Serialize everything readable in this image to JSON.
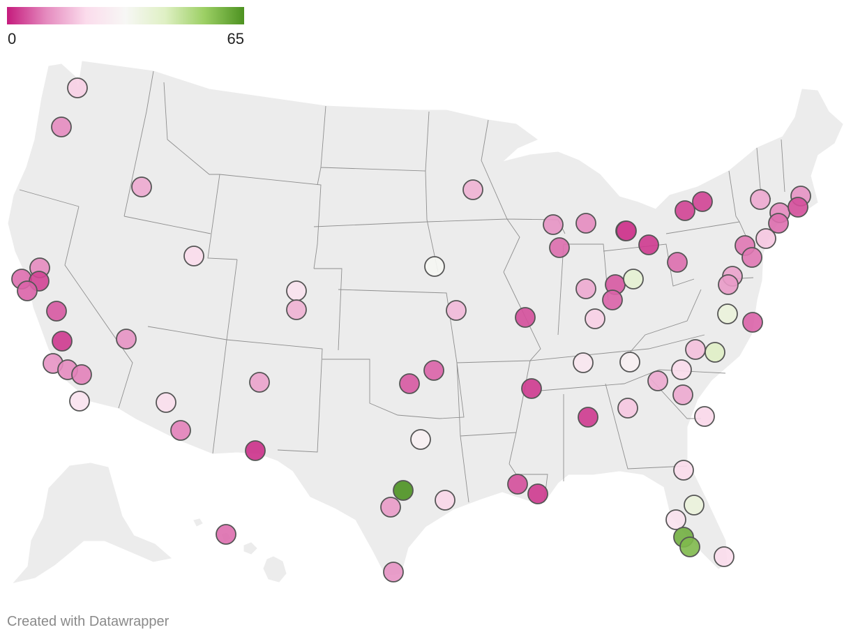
{
  "legend": {
    "min_label": "0",
    "max_label": "65",
    "min_value": 0,
    "max_value": 65,
    "colors": [
      "#c51b7d",
      "#e58bbf",
      "#fbdcec",
      "#f7f7f5",
      "#dff0c4",
      "#9ccf64",
      "#4d9221"
    ]
  },
  "credit": "Created with Datawrapper",
  "map_data": {
    "type": "symbol-map",
    "region": "United States",
    "symbols": [
      {
        "location": "Seattle, WA",
        "value": 20
      },
      {
        "location": "Portland, OR",
        "value": 11
      },
      {
        "location": "Boise, ID",
        "value": 15
      },
      {
        "location": "Sacramento, CA",
        "value": 11
      },
      {
        "location": "Santa Rosa, CA",
        "value": 8
      },
      {
        "location": "Oakland, CA",
        "value": 4
      },
      {
        "location": "San Jose, CA",
        "value": 7
      },
      {
        "location": "Fresno, CA",
        "value": 6
      },
      {
        "location": "Bakersfield, CA",
        "value": 3
      },
      {
        "location": "Los Angeles, CA",
        "value": 12
      },
      {
        "location": "Riverside, CA",
        "value": 11
      },
      {
        "location": "San Bernardino, CA",
        "value": 10
      },
      {
        "location": "San Diego, CA",
        "value": 24
      },
      {
        "location": "Las Vegas, NV",
        "value": 12
      },
      {
        "location": "Salt Lake City, UT",
        "value": 22
      },
      {
        "location": "Phoenix, AZ",
        "value": 23
      },
      {
        "location": "Tucson, AZ",
        "value": 10
      },
      {
        "location": "Albuquerque, NM",
        "value": 14
      },
      {
        "location": "El Paso, TX",
        "value": 2
      },
      {
        "location": "Denver, CO",
        "value": 24
      },
      {
        "location": "Colorado Springs, CO",
        "value": 16
      },
      {
        "location": "Omaha, NE",
        "value": 33
      },
      {
        "location": "Kansas City, MO",
        "value": 17
      },
      {
        "location": "Tulsa, OK",
        "value": 7
      },
      {
        "location": "Oklahoma City, OK",
        "value": 6
      },
      {
        "location": "Dallas, TX",
        "value": 30
      },
      {
        "location": "Austin, TX",
        "value": 65
      },
      {
        "location": "San Antonio, TX",
        "value": 13
      },
      {
        "location": "Houston, TX",
        "value": 21
      },
      {
        "location": "McAllen, TX",
        "value": 12
      },
      {
        "location": "Honolulu, HI",
        "value": 8
      },
      {
        "location": "Minneapolis, MN",
        "value": 16
      },
      {
        "location": "Madison, WI",
        "value": 12
      },
      {
        "location": "Chicago, IL",
        "value": 8
      },
      {
        "location": "Grand Rapids, MI",
        "value": 11
      },
      {
        "location": "Detroit, MI",
        "value": 7
      },
      {
        "location": "Toledo, OH",
        "value": 3
      },
      {
        "location": "Indianapolis, IN",
        "value": 15
      },
      {
        "location": "Dayton, OH",
        "value": 6
      },
      {
        "location": "Columbus, OH",
        "value": 40
      },
      {
        "location": "Cincinnati, OH",
        "value": 7
      },
      {
        "location": "Louisville, KY",
        "value": 20
      },
      {
        "location": "St. Louis, MO",
        "value": 5
      },
      {
        "location": "Memphis, TN",
        "value": 3
      },
      {
        "location": "Nashville, TN",
        "value": 26
      },
      {
        "location": "Knoxville, TN",
        "value": 30
      },
      {
        "location": "Birmingham, AL",
        "value": 3
      },
      {
        "location": "Atlanta, GA",
        "value": 19
      },
      {
        "location": "Baton Rouge, LA",
        "value": 5
      },
      {
        "location": "New Orleans, LA",
        "value": 3
      },
      {
        "location": "Buffalo, NY",
        "value": 4
      },
      {
        "location": "Rochester, NY",
        "value": 4
      },
      {
        "location": "Cleveland, OH",
        "value": 3
      },
      {
        "location": "Pittsburgh, PA",
        "value": 8
      },
      {
        "location": "Albany, NY",
        "value": 15
      },
      {
        "location": "Hartford, CT",
        "value": 11
      },
      {
        "location": "Boston, MA",
        "value": 12
      },
      {
        "location": "Providence, RI",
        "value": 5
      },
      {
        "location": "New York, NY",
        "value": 8
      },
      {
        "location": "Allentown, PA",
        "value": 9
      },
      {
        "location": "Philadelphia, PA",
        "value": 9
      },
      {
        "location": "Trenton, NJ",
        "value": 19
      },
      {
        "location": "Baltimore, MD",
        "value": 14
      },
      {
        "location": "Washington, DC",
        "value": 13
      },
      {
        "location": "Richmond, VA",
        "value": 38
      },
      {
        "location": "Virginia Beach, VA",
        "value": 7
      },
      {
        "location": "Greensboro, NC",
        "value": 18
      },
      {
        "location": "Raleigh, NC",
        "value": 43
      },
      {
        "location": "Charlotte, NC",
        "value": 22
      },
      {
        "location": "Greenville, SC",
        "value": 15
      },
      {
        "location": "Columbia, SC",
        "value": 15
      },
      {
        "location": "Charleston, SC",
        "value": 21
      },
      {
        "location": "Jacksonville, FL",
        "value": 22
      },
      {
        "location": "Orlando, FL",
        "value": 38
      },
      {
        "location": "Tampa, FL",
        "value": 24
      },
      {
        "location": "Cape Coral, FL",
        "value": 60
      },
      {
        "location": "North Port, FL",
        "value": 58
      },
      {
        "location": "Miami, FL",
        "value": 22
      }
    ]
  }
}
